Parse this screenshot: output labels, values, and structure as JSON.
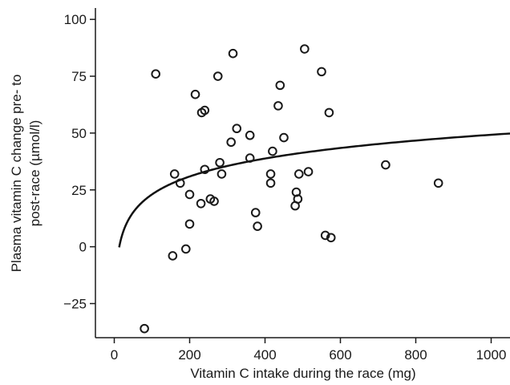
{
  "chart_data": {
    "type": "scatter",
    "title": "",
    "xlabel": "Vitamin C intake during the race (mg)",
    "ylabel_lines": [
      "Plasma vitamin C change pre- to",
      "post-race (µmol/l)"
    ],
    "xlim": [
      -50,
      1050
    ],
    "ylim": [
      -40,
      105
    ],
    "xticks": [
      0,
      200,
      400,
      600,
      800,
      1000
    ],
    "yticks": [
      -25,
      0,
      25,
      50,
      75,
      100
    ],
    "ytick_labels": [
      "−25",
      "0",
      "25",
      "50",
      "75",
      "100"
    ],
    "grid": false,
    "legend": "none",
    "series": [
      {
        "style": "open-circle",
        "points": [
          {
            "x": 80,
            "y": -36
          },
          {
            "x": 110,
            "y": 76
          },
          {
            "x": 155,
            "y": -4
          },
          {
            "x": 160,
            "y": 32
          },
          {
            "x": 175,
            "y": 28
          },
          {
            "x": 190,
            "y": -1
          },
          {
            "x": 200,
            "y": 23
          },
          {
            "x": 200,
            "y": 10
          },
          {
            "x": 215,
            "y": 67
          },
          {
            "x": 230,
            "y": 19
          },
          {
            "x": 232,
            "y": 59
          },
          {
            "x": 240,
            "y": 60
          },
          {
            "x": 240,
            "y": 34
          },
          {
            "x": 255,
            "y": 21
          },
          {
            "x": 265,
            "y": 20
          },
          {
            "x": 275,
            "y": 75
          },
          {
            "x": 280,
            "y": 37
          },
          {
            "x": 285,
            "y": 32
          },
          {
            "x": 310,
            "y": 46
          },
          {
            "x": 315,
            "y": 85
          },
          {
            "x": 325,
            "y": 52
          },
          {
            "x": 360,
            "y": 49
          },
          {
            "x": 360,
            "y": 39
          },
          {
            "x": 375,
            "y": 15
          },
          {
            "x": 380,
            "y": 9
          },
          {
            "x": 415,
            "y": 32
          },
          {
            "x": 415,
            "y": 28
          },
          {
            "x": 420,
            "y": 42
          },
          {
            "x": 435,
            "y": 62
          },
          {
            "x": 440,
            "y": 71
          },
          {
            "x": 450,
            "y": 48
          },
          {
            "x": 480,
            "y": 18
          },
          {
            "x": 483,
            "y": 24
          },
          {
            "x": 487,
            "y": 21
          },
          {
            "x": 490,
            "y": 32
          },
          {
            "x": 505,
            "y": 87
          },
          {
            "x": 515,
            "y": 33
          },
          {
            "x": 550,
            "y": 77
          },
          {
            "x": 560,
            "y": 5
          },
          {
            "x": 570,
            "y": 59
          },
          {
            "x": 575,
            "y": 4
          },
          {
            "x": 720,
            "y": 36
          },
          {
            "x": 860,
            "y": 28
          }
        ]
      }
    ],
    "fit_curve": {
      "form": "a + b*ln(x)",
      "a": -29.5,
      "b": 11.4,
      "x_start": 13,
      "x_end": 1050
    }
  }
}
